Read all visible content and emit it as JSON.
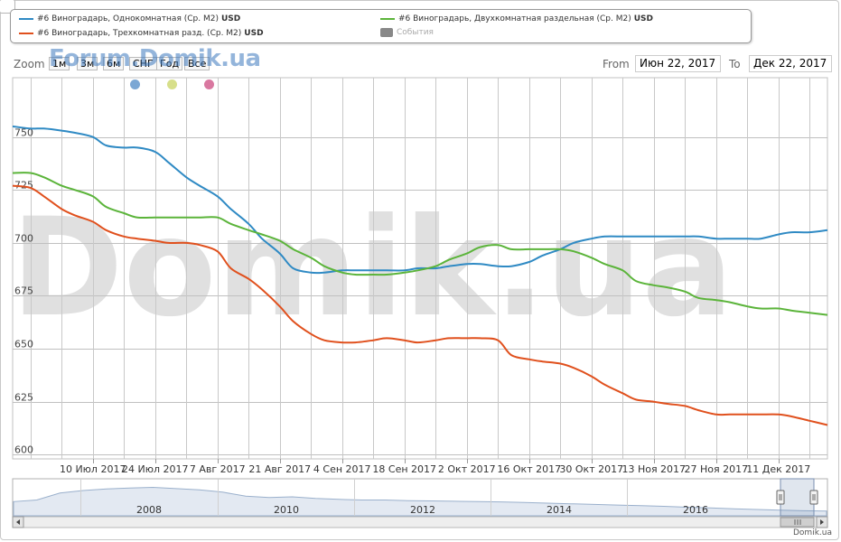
{
  "legend": {
    "items": [
      {
        "label": "#6 Виноградарь, Однокомнатная (Ср. М2)",
        "unit": "USD",
        "color": "#2f8ac4"
      },
      {
        "label": "#6 Виноградарь, Двухкомнатная раздельная (Ср. М2)",
        "unit": "USD",
        "color": "#5bb43a"
      },
      {
        "label": "#6 Виноградарь, Трехкомнатная разд. (Ср. М2)",
        "unit": "USD",
        "color": "#e0501d"
      },
      {
        "label": "События",
        "unit": "",
        "color": "#888888"
      }
    ]
  },
  "zoom": {
    "label": "Zoom",
    "buttons": [
      "1м",
      "3м",
      "6м",
      "СНГ",
      "Год",
      "Все"
    ]
  },
  "range": {
    "from_label": "From",
    "from_value": "Июн 22, 2017",
    "to_label": "To",
    "to_value": "Дек 22, 2017"
  },
  "watermark": {
    "top": "Forum.Domik.ua",
    "main": "Domik.ua"
  },
  "indicator_dots": [
    "#7ba7d4",
    "#d7df8a",
    "#d978a0"
  ],
  "chart_data": {
    "type": "line",
    "x": [
      "2017-06-22",
      "2017-06-26",
      "2017-06-29",
      "2017-07-03",
      "2017-07-06",
      "2017-07-10",
      "2017-07-13",
      "2017-07-17",
      "2017-07-20",
      "2017-07-24",
      "2017-07-27",
      "2017-07-31",
      "2017-08-03",
      "2017-08-07",
      "2017-08-10",
      "2017-08-14",
      "2017-08-17",
      "2017-08-21",
      "2017-08-24",
      "2017-08-28",
      "2017-08-31",
      "2017-09-04",
      "2017-09-07",
      "2017-09-11",
      "2017-09-14",
      "2017-09-18",
      "2017-09-21",
      "2017-09-25",
      "2017-09-28",
      "2017-10-02",
      "2017-10-05",
      "2017-10-09",
      "2017-10-12",
      "2017-10-16",
      "2017-10-19",
      "2017-10-23",
      "2017-10-26",
      "2017-10-30",
      "2017-11-02",
      "2017-11-06",
      "2017-11-09",
      "2017-11-13",
      "2017-11-16",
      "2017-11-20",
      "2017-11-23",
      "2017-11-27",
      "2017-11-30",
      "2017-12-04",
      "2017-12-07",
      "2017-12-11",
      "2017-12-14",
      "2017-12-18",
      "2017-12-22"
    ],
    "series": [
      {
        "name": "#6 Виноградарь, Однокомнатная (Ср. М2) USD",
        "color": "#2f8ac4",
        "values": [
          755,
          754,
          754,
          753,
          752,
          750,
          746,
          745,
          745,
          743,
          738,
          731,
          727,
          722,
          716,
          709,
          702,
          695,
          688,
          686,
          686,
          687,
          687,
          687,
          687,
          687,
          688,
          688,
          689,
          690,
          690,
          689,
          689,
          691,
          694,
          697,
          700,
          702,
          703,
          703,
          703,
          703,
          703,
          703,
          703,
          702,
          702,
          702,
          702,
          704,
          705,
          705,
          706
        ]
      },
      {
        "name": "#6 Виноградарь, Двухкомнатная раздельная (Ср. М2) USD",
        "color": "#5bb43a",
        "values": [
          733,
          733,
          731,
          727,
          725,
          722,
          717,
          714,
          712,
          712,
          712,
          712,
          712,
          712,
          709,
          706,
          704,
          701,
          697,
          693,
          689,
          686,
          685,
          685,
          685,
          686,
          687,
          689,
          692,
          695,
          698,
          699,
          697,
          697,
          697,
          697,
          696,
          693,
          690,
          687,
          682,
          680,
          679,
          677,
          674,
          673,
          672,
          670,
          669,
          669,
          668,
          667,
          666
        ]
      },
      {
        "name": "#6 Виноградарь, Трехкомнатная разд. (Ср. М2) USD",
        "color": "#e0501d",
        "values": [
          727,
          726,
          722,
          716,
          713,
          710,
          706,
          703,
          702,
          701,
          700,
          700,
          699,
          696,
          688,
          683,
          678,
          670,
          663,
          657,
          654,
          653,
          653,
          654,
          655,
          654,
          653,
          654,
          655,
          655,
          655,
          654,
          647,
          645,
          644,
          643,
          641,
          637,
          633,
          629,
          626,
          625,
          624,
          623,
          621,
          619,
          619,
          619,
          619,
          619,
          618,
          616,
          614
        ]
      }
    ],
    "xticks": [
      "10 Июл 2017",
      "24 Июл 2017",
      "7 Авг 2017",
      "21 Авг 2017",
      "4 Сен 2017",
      "18 Сен 2017",
      "2 Окт 2017",
      "16 Окт 2017",
      "30 Окт 2017",
      "13 Ноя 2017",
      "27 Ноя 2017",
      "11 Дек 2017"
    ],
    "yticks": [
      600,
      625,
      650,
      675,
      700,
      725,
      750
    ],
    "ylim": [
      598,
      778
    ],
    "grid": true,
    "navigator": {
      "years": [
        "2008",
        "2010",
        "2012",
        "2014",
        "2016"
      ]
    }
  },
  "credit": "Domik.ua"
}
